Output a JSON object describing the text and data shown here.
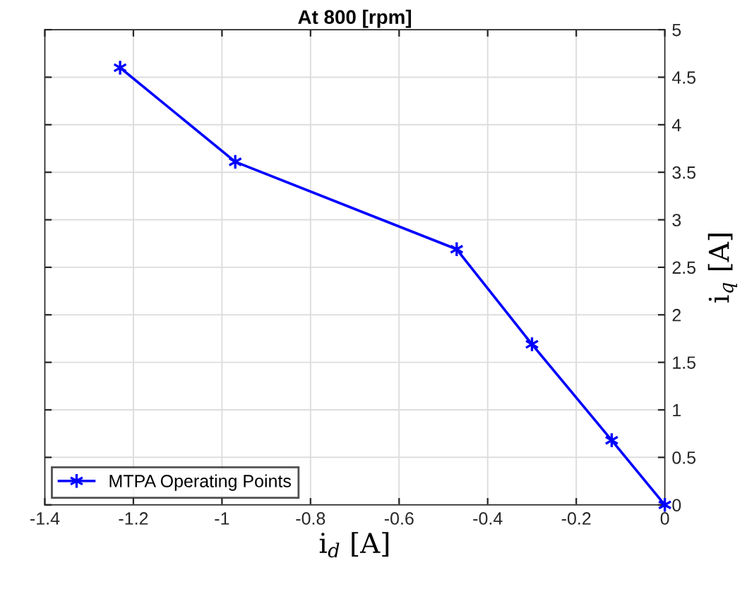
{
  "chart_data": {
    "type": "line",
    "title": "At 800 [rpm]",
    "xlabel": "i$_{d}$ [A]",
    "ylabel": "i$_{q}$ [A]",
    "x": [
      -1.23,
      -0.97,
      -0.47,
      -0.3,
      -0.12,
      0
    ],
    "series": [
      {
        "name": "MTPA Operating Points",
        "color": "#0000ff",
        "values": [
          4.6,
          3.61,
          2.69,
          1.69,
          0.68,
          0
        ]
      }
    ],
    "xlim": [
      -1.4,
      0
    ],
    "xticks": [
      -1.4,
      -1.2,
      -1,
      -0.8,
      -0.6,
      -0.4,
      -0.2,
      0
    ],
    "ylim": [
      0,
      5
    ],
    "yticks": [
      0,
      0.5,
      1,
      1.5,
      2,
      2.5,
      3,
      3.5,
      4,
      4.5,
      5
    ],
    "grid": true,
    "legend": "bottom left",
    "marker": "cross",
    "line_style": "solid"
  }
}
